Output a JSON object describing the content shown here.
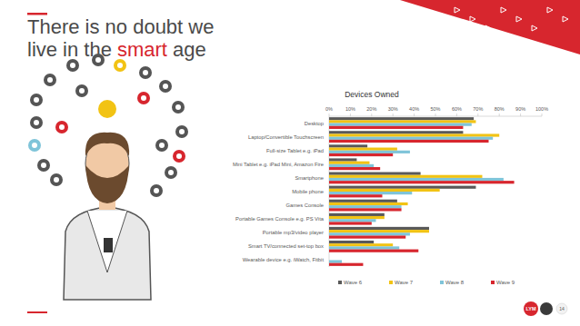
{
  "slide": {
    "title_line_1": "There is no doubt we",
    "title_line_2_before": "live in the",
    "title_highlight": "smart",
    "title_line_2_after": "age",
    "logo_text": "LYM",
    "page_number": "14"
  },
  "chart_data": {
    "type": "bar",
    "orientation": "horizontal",
    "title": "Devices Owned",
    "categories": [
      "Desktop",
      "Laptop/Convertible Touchscreen",
      "Full-size Tablet e.g. iPad",
      "Mini Tablet e.g. iPad Mini, Amazon Fire",
      "Smartphone",
      "Mobile phone",
      "Games Console",
      "Portable Games Console e.g. PS Vita",
      "Portable mp3/video player",
      "Smart TV/connected set-top box",
      "Wearable device e.g. iWatch, Fitbit"
    ],
    "series": [
      {
        "name": "Wave 6",
        "color": "#595959",
        "values": [
          68,
          63,
          18,
          13,
          43,
          69,
          32,
          26,
          47,
          21,
          0
        ]
      },
      {
        "name": "Wave 7",
        "color": "#f2c314",
        "values": [
          69,
          80,
          32,
          19,
          72,
          52,
          37,
          26,
          47,
          30,
          0
        ]
      },
      {
        "name": "Wave 8",
        "color": "#7fc4d9",
        "values": [
          67,
          77,
          38,
          21,
          82,
          39,
          34,
          22,
          38,
          33,
          6
        ]
      },
      {
        "name": "Wave 9",
        "color": "#d7262e",
        "values": [
          63,
          75,
          30,
          24,
          87,
          25,
          34,
          20,
          36,
          42,
          16
        ]
      }
    ],
    "xlim": [
      0,
      100
    ],
    "xticks": [
      {
        "value": 0,
        "label": "0%"
      },
      {
        "value": 10,
        "label": "10%"
      },
      {
        "value": 20,
        "label": "20%"
      },
      {
        "value": 30,
        "label": "30%"
      },
      {
        "value": 40,
        "label": "40%"
      },
      {
        "value": 50,
        "label": "50%"
      },
      {
        "value": 60,
        "label": "60%"
      },
      {
        "value": 70,
        "label": "70%"
      },
      {
        "value": 80,
        "label": "80%"
      },
      {
        "value": 90,
        "label": "90%"
      },
      {
        "value": 100,
        "label": "100%"
      }
    ],
    "grid": false,
    "legend": "bottom"
  }
}
